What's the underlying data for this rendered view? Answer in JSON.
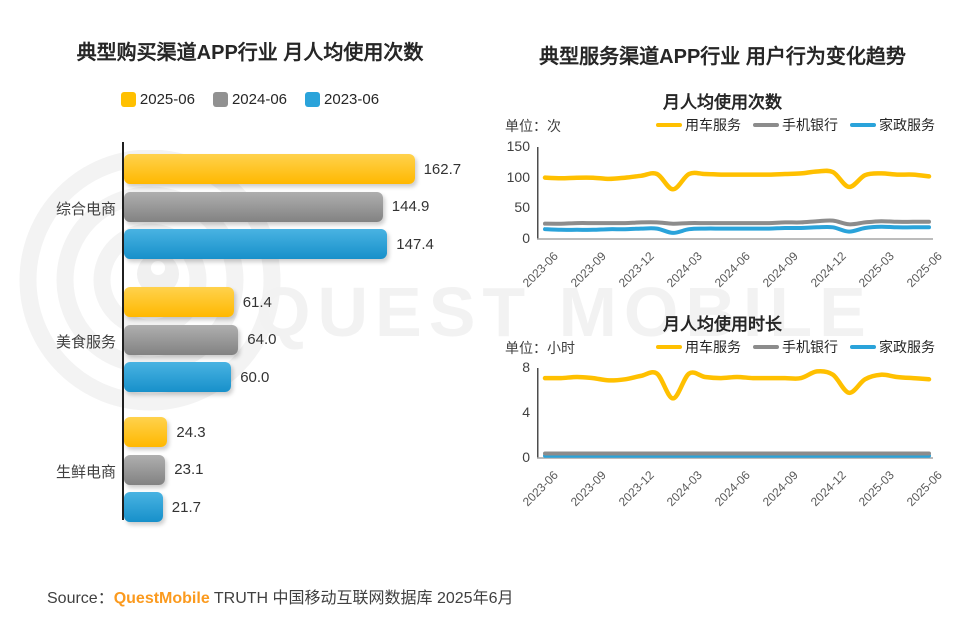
{
  "watermark": {
    "text": "QUEST MOBILE"
  },
  "right_panel": {
    "title": "典型服务渠道APP行业 用户行为变化趋势"
  },
  "footer": {
    "source_label": "Source：",
    "brand": "QuestMobile",
    "suffix": " TRUTH 中国移动互联网数据库 2025年6月",
    "brand_color": "#FB9A1E"
  },
  "chart_data": [
    {
      "type": "bar",
      "orientation": "horizontal",
      "title": "典型购买渠道APP行业 月人均使用次数",
      "categories": [
        "综合电商",
        "美食服务",
        "生鲜电商"
      ],
      "series": [
        {
          "name": "2025-06",
          "color": "#FFC000",
          "color_light": "#FFD24D",
          "color_dark": "#FFB800",
          "values": [
            162.7,
            61.4,
            24.3
          ],
          "value_labels": [
            "162.7",
            "61.4",
            "24.3"
          ]
        },
        {
          "name": "2024-06",
          "color": "#919191",
          "color_light": "#AFAFAF",
          "color_dark": "#828282",
          "values": [
            144.9,
            64.0,
            23.1
          ],
          "value_labels": [
            "144.9",
            "64.0",
            "23.1"
          ]
        },
        {
          "name": "2023-06",
          "color": "#2AA3DA",
          "color_light": "#49B3E2",
          "color_dark": "#1790CA",
          "values": [
            147.4,
            60.0,
            21.7
          ],
          "value_labels": [
            "147.4",
            "60.0",
            "21.7"
          ]
        }
      ],
      "xlim": [
        0,
        180
      ]
    },
    {
      "type": "line",
      "title": "月人均使用次数",
      "unit_label": "单位：次",
      "ylim": [
        0,
        150
      ],
      "yticks": [
        150,
        100,
        50,
        0
      ],
      "x_ticks": [
        "2023-06",
        "2023-09",
        "2023-12",
        "2024-03",
        "2024-06",
        "2024-09",
        "2024-12",
        "2025-03",
        "2025-06"
      ],
      "tick_every": 3,
      "x_resolution": "monthly",
      "legend_position": "top-right",
      "series": [
        {
          "name": "用车服务",
          "color": "#FFC000",
          "values": [
            100,
            99,
            100,
            100,
            98,
            100,
            103,
            106,
            81,
            106,
            106,
            105,
            105,
            105,
            105,
            106,
            107,
            110,
            109,
            85,
            104,
            107,
            105,
            105,
            102
          ]
        },
        {
          "name": "手机银行",
          "color": "#8C8C8C",
          "values": [
            25,
            25,
            26,
            26,
            26,
            26,
            27,
            27,
            25,
            26,
            26,
            26,
            26,
            26,
            26,
            27,
            27,
            29,
            30,
            24,
            27,
            29,
            28,
            28,
            28
          ]
        },
        {
          "name": "家政服务",
          "color": "#2AA3DA",
          "values": [
            16,
            15,
            15,
            15,
            16,
            16,
            17,
            17,
            10,
            16,
            17,
            17,
            17,
            17,
            17,
            18,
            18,
            19,
            19,
            12,
            18,
            20,
            19,
            19,
            19
          ]
        }
      ]
    },
    {
      "type": "line",
      "title": "月人均使用时长",
      "unit_label": "单位：小时",
      "ylim": [
        0,
        8
      ],
      "yticks": [
        8,
        4,
        0
      ],
      "x_ticks": [
        "2023-06",
        "2023-09",
        "2023-12",
        "2024-03",
        "2024-06",
        "2024-09",
        "2024-12",
        "2025-03",
        "2025-06"
      ],
      "tick_every": 3,
      "x_resolution": "monthly",
      "legend_position": "top-right",
      "series": [
        {
          "name": "用车服务",
          "color": "#FFC000",
          "values": [
            7.1,
            7.1,
            7.2,
            7.1,
            6.9,
            7.0,
            7.3,
            7.5,
            5.3,
            7.5,
            7.2,
            7.1,
            7.2,
            7.1,
            7.1,
            7.1,
            7.1,
            7.7,
            7.4,
            5.8,
            7.0,
            7.4,
            7.2,
            7.1,
            7.0
          ]
        },
        {
          "name": "手机银行",
          "color": "#8C8C8C",
          "values": [
            0.4,
            0.4,
            0.4,
            0.4,
            0.4,
            0.4,
            0.4,
            0.4,
            0.4,
            0.4,
            0.4,
            0.4,
            0.4,
            0.4,
            0.4,
            0.4,
            0.4,
            0.4,
            0.4,
            0.4,
            0.4,
            0.4,
            0.4,
            0.4,
            0.4
          ]
        },
        {
          "name": "家政服务",
          "color": "#2AA3DA",
          "values": [
            0.2,
            0.2,
            0.2,
            0.2,
            0.2,
            0.2,
            0.2,
            0.2,
            0.2,
            0.2,
            0.2,
            0.2,
            0.2,
            0.2,
            0.2,
            0.2,
            0.2,
            0.2,
            0.2,
            0.2,
            0.2,
            0.2,
            0.2,
            0.2,
            0.2
          ]
        }
      ]
    }
  ]
}
